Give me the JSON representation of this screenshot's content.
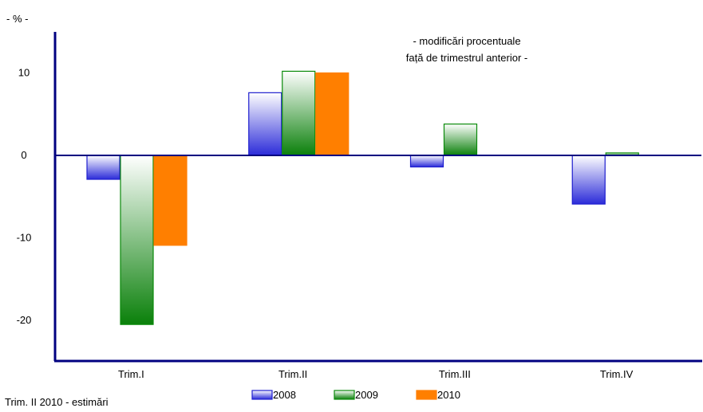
{
  "chart_data": {
    "type": "bar",
    "unit_label": "- % -",
    "annotation_lines": [
      "- modificări procentuale",
      "față de trimestrul anterior -"
    ],
    "categories": [
      "Trim.I",
      "Trim.II",
      "Trim.III",
      "Trim.IV"
    ],
    "series": [
      {
        "name": "2008",
        "values": [
          -2.9,
          7.6,
          -1.4,
          -5.9
        ]
      },
      {
        "name": "2009",
        "values": [
          -20.5,
          10.2,
          3.8,
          0.3
        ]
      },
      {
        "name": "2010",
        "values": [
          -10.9,
          10.0,
          null,
          null
        ]
      }
    ],
    "yticks": [
      10,
      0,
      -10,
      -20
    ],
    "ylim": [
      -25,
      15
    ],
    "grid": false,
    "legend_position": "bottom",
    "footnote": "Trim. II 2010 - estimări",
    "colors": {
      "2008": "#1f1fcf",
      "2009": "#0a8a0a",
      "2010": "#ff7f00",
      "axis": "#000080"
    }
  }
}
